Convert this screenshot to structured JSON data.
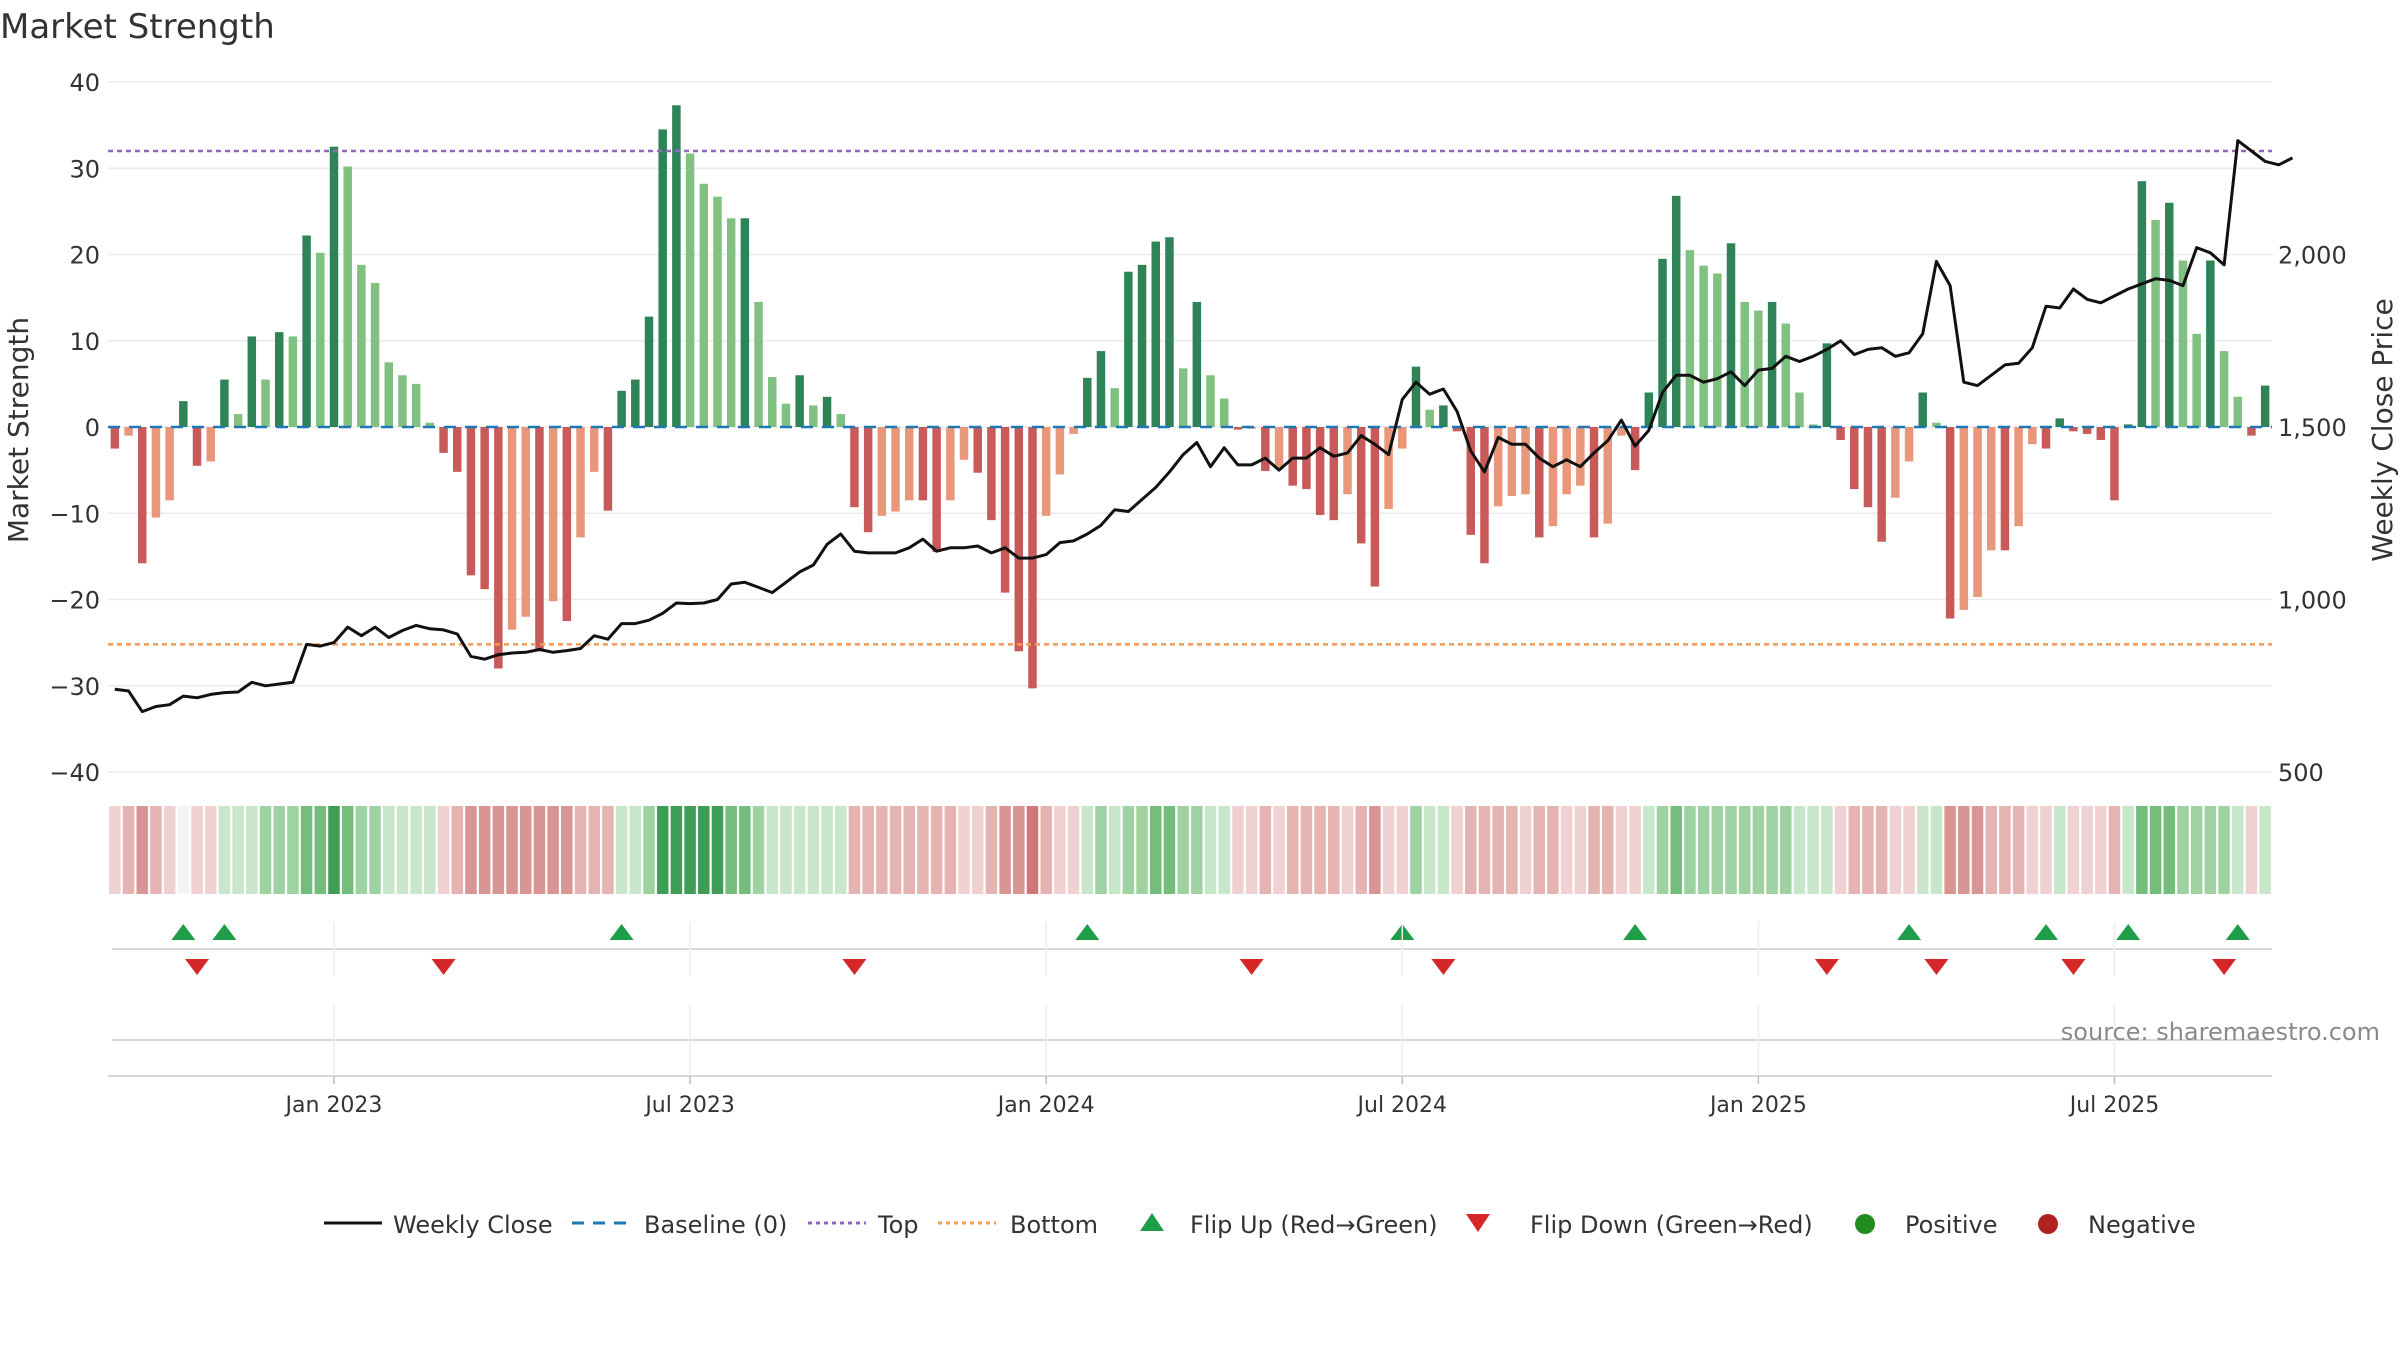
{
  "chart_data": {
    "type": "bar",
    "title": "Market Strength",
    "ylabel": "Market Strength",
    "y2label": "Weekly Close Price",
    "source": "source: sharemaestro.com",
    "ylim": [
      -40,
      40
    ],
    "y_ticks": [
      40,
      30,
      20,
      10,
      0,
      -10,
      -20,
      -30,
      -40
    ],
    "y_tick_labels": [
      "40",
      "30",
      "20",
      "10",
      "0",
      "−10",
      "−20",
      "−30",
      "−40"
    ],
    "y2lim": [
      500,
      2500
    ],
    "y2_ticks": [
      2000,
      1500,
      1000,
      500
    ],
    "y2_tick_labels": [
      "2,000",
      "1,500",
      "1,000",
      "500"
    ],
    "top_line": 32,
    "bottom_line": -25.2,
    "grid": true,
    "legend_position": "bottom",
    "x_tick_labels": [
      "Jan 2023",
      "Jul 2023",
      "Jan 2024",
      "Jul 2024",
      "Jan 2025",
      "Jul 2025"
    ],
    "x_tick_weeks": [
      16,
      42,
      68,
      94,
      120,
      146
    ],
    "values": [
      -2.5,
      -1,
      -15.8,
      -10.5,
      -8.5,
      3,
      -4.5,
      -4,
      5.5,
      1.5,
      10.5,
      5.5,
      11,
      10.5,
      22.2,
      20.2,
      32.5,
      30.2,
      18.8,
      16.7,
      7.5,
      6,
      5,
      0.5,
      -3,
      -5.2,
      -17.2,
      -18.8,
      -28,
      -23.5,
      -22,
      -26,
      -20.2,
      -22.5,
      -12.8,
      -5.2,
      -9.7,
      4.2,
      5.5,
      12.8,
      34.5,
      37.3,
      31.7,
      28.2,
      26.7,
      24.2,
      24.2,
      14.5,
      5.8,
      2.7,
      6,
      2.5,
      3.5,
      1.5,
      -9.3,
      -12.2,
      -10.3,
      -9.8,
      -8.5,
      -8.5,
      -14.5,
      -8.5,
      -3.8,
      -5.3,
      -10.8,
      -19.2,
      -26,
      -30.3,
      -10.3,
      -5.5,
      -0.8,
      5.7,
      8.8,
      4.5,
      18,
      18.8,
      21.5,
      22,
      6.8,
      14.5,
      6,
      3.3,
      -0.3,
      -0.2,
      -5.1,
      -4.8,
      -6.8,
      -7.2,
      -10.2,
      -10.8,
      -7.8,
      -13.5,
      -18.5,
      -9.5,
      -2.5,
      7,
      2,
      2.5,
      -0.5,
      -12.5,
      -15.8,
      -9.2,
      -8,
      -7.8,
      -12.8,
      -11.5,
      -7.8,
      -6.8,
      -12.8,
      -11.2,
      -1,
      -5,
      4,
      19.5,
      26.8,
      20.5,
      18.7,
      17.8,
      21.3,
      14.5,
      13.5,
      14.5,
      12,
      4,
      0.3,
      9.7,
      -1.5,
      -7.2,
      -9.3,
      -13.3,
      -8.2,
      -4,
      4,
      0.5,
      -22.2,
      -21.2,
      -19.7,
      -14.3,
      -14.3,
      -11.5,
      -2,
      -2.5,
      1,
      -0.5,
      -0.8,
      -1.5,
      -8.5,
      0.3,
      28.5,
      24,
      26,
      19.3,
      10.8,
      19.3,
      8.8,
      3.5,
      -1,
      4.8
    ],
    "weekly_close": [
      740,
      735,
      675,
      690,
      695,
      720,
      715,
      725,
      730,
      732,
      760,
      750,
      755,
      760,
      870,
      865,
      875,
      920,
      895,
      920,
      890,
      910,
      925,
      915,
      912,
      900,
      835,
      827,
      840,
      845,
      847,
      855,
      847,
      852,
      858,
      895,
      885,
      930,
      930,
      940,
      960,
      990,
      988,
      990,
      1000,
      1045,
      1050,
      1035,
      1020,
      1050,
      1080,
      1100,
      1160,
      1190,
      1140,
      1135,
      1135,
      1135,
      1150,
      1175,
      1140,
      1150,
      1150,
      1155,
      1135,
      1150,
      1120,
      1120,
      1130,
      1165,
      1170,
      1190,
      1215,
      1260,
      1255,
      1290,
      1325,
      1370,
      1420,
      1455,
      1385,
      1440,
      1390,
      1390,
      1410,
      1375,
      1410,
      1410,
      1440,
      1415,
      1425,
      1475,
      1450,
      1420,
      1580,
      1630,
      1595,
      1610,
      1545,
      1430,
      1370,
      1470,
      1450,
      1450,
      1410,
      1385,
      1405,
      1385,
      1425,
      1460,
      1520,
      1445,
      1490,
      1600,
      1650,
      1650,
      1630,
      1640,
      1660,
      1620,
      1665,
      1670,
      1705,
      1690,
      1705,
      1725,
      1750,
      1710,
      1725,
      1730,
      1705,
      1715,
      1770,
      1980,
      1910,
      1630,
      1620,
      1650,
      1680,
      1685,
      1730,
      1850,
      1845,
      1900,
      1870,
      1860,
      1880,
      1900,
      1915,
      1930,
      1925,
      1910,
      2020,
      2005,
      1970,
      2330,
      2300,
      2270,
      2260,
      2280
    ],
    "strength_band": [
      -1,
      -2,
      -3,
      -2,
      -1,
      0,
      -1,
      -1,
      1,
      1,
      1,
      2,
      2,
      2,
      3,
      3,
      4,
      3,
      2,
      2,
      1,
      1,
      1,
      1,
      -1,
      -2,
      -3,
      -3,
      -3,
      -3,
      -3,
      -3,
      -3,
      -3,
      -2,
      -2,
      -2,
      1,
      1,
      2,
      4,
      4,
      4,
      4,
      4,
      3,
      3,
      2,
      1,
      1,
      1,
      1,
      1,
      1,
      -2,
      -2,
      -2,
      -2,
      -2,
      -2,
      -2,
      -2,
      -1,
      -1,
      -2,
      -3,
      -3,
      -4,
      -2,
      -1,
      -1,
      1,
      2,
      1,
      2,
      2,
      3,
      3,
      2,
      2,
      1,
      1,
      -1,
      -1,
      -2,
      -1,
      -2,
      -2,
      -2,
      -2,
      -1,
      -2,
      -3,
      -1,
      -1,
      2,
      1,
      1,
      -1,
      -2,
      -2,
      -2,
      -2,
      -1,
      -2,
      -2,
      -1,
      -1,
      -2,
      -2,
      -1,
      -1,
      1,
      2,
      3,
      2,
      2,
      2,
      2,
      2,
      2,
      2,
      2,
      1,
      1,
      1,
      -1,
      -2,
      -2,
      -2,
      -1,
      -1,
      1,
      1,
      -3,
      -3,
      -3,
      -2,
      -2,
      -2,
      -1,
      -1,
      1,
      -1,
      -1,
      -1,
      -2,
      1,
      3,
      3,
      3,
      2,
      2,
      2,
      2,
      1,
      -1,
      1
    ],
    "flip_up_weeks": [
      5,
      8,
      37,
      71,
      94,
      111,
      131,
      141,
      147,
      155
    ],
    "flip_down_weeks": [
      6,
      24,
      54,
      83,
      97,
      125,
      133,
      143,
      154
    ]
  },
  "legend": {
    "weekly_close": "Weekly Close",
    "baseline": "Baseline (0)",
    "top": "Top",
    "bottom": "Bottom",
    "flip_up": "Flip Up (Red→Green)",
    "flip_down": "Flip Down (Green→Red)",
    "positive": "Positive",
    "negative": "Negative"
  },
  "colors": {
    "pos_strong": "#2e8457",
    "pos_light": "#80c080",
    "neg_strong": "#c85a5a",
    "neg_light": "#e8977a",
    "close_line": "#111111",
    "baseline": "#1f77b4",
    "top_line": "#9467bd",
    "bottom_line": "#f39c54",
    "flip_up": "#1f9e4a",
    "flip_down": "#d62728",
    "positive_dot": "#228b22",
    "negative_dot": "#b22222",
    "band_pos": [
      "#c8e6c9",
      "#9ed3a1",
      "#74bd7d",
      "#3f9e55"
    ],
    "band_neg": [
      "#efd1d1",
      "#e6b3b3",
      "#d99494",
      "#cd7777"
    ]
  }
}
